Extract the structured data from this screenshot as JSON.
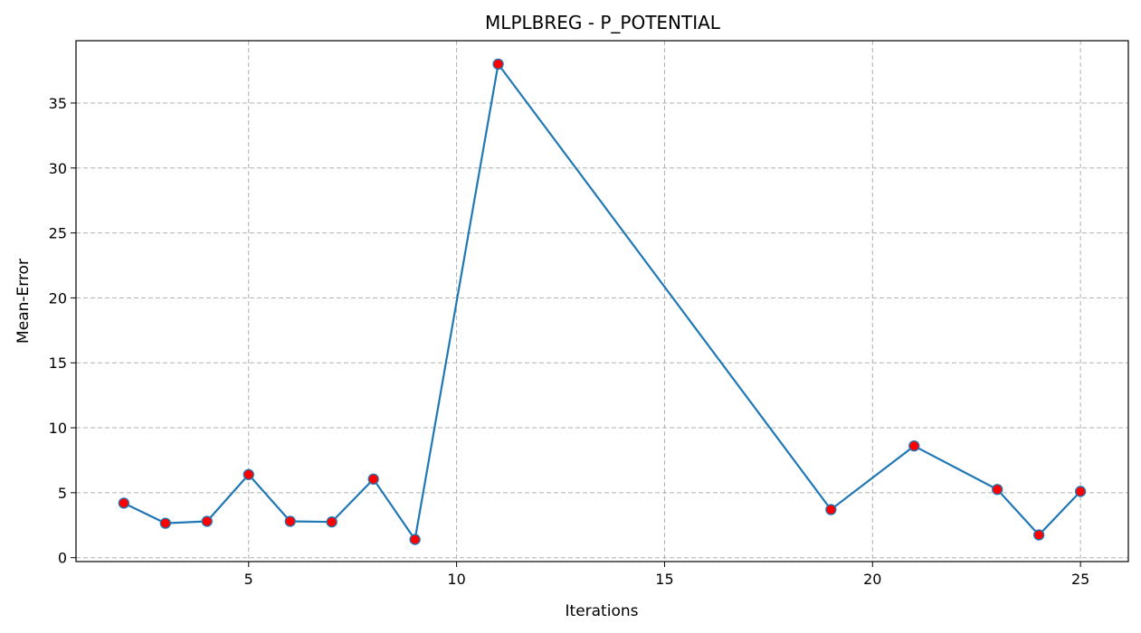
{
  "chart_data": {
    "type": "line",
    "title": "MLPLBREG - P_POTENTIAL",
    "xlabel": "Iterations",
    "ylabel": "Mean-Error",
    "xlim": [
      0.85,
      26.15
    ],
    "ylim": [
      -0.3,
      39.8
    ],
    "xticks": [
      5,
      10,
      15,
      20,
      25
    ],
    "yticks": [
      0,
      5,
      10,
      15,
      20,
      25,
      30,
      35
    ],
    "grid": true,
    "grid_style": "dashed",
    "line_color": "#1f77b4",
    "marker_color": "#ff0000",
    "x": [
      2,
      3,
      4,
      5,
      6,
      7,
      8,
      9,
      11,
      19,
      21,
      23,
      24,
      25
    ],
    "values": [
      4.2,
      2.65,
      2.8,
      6.4,
      2.8,
      2.75,
      6.05,
      1.4,
      38.0,
      3.7,
      8.6,
      5.25,
      1.75,
      5.1
    ]
  }
}
